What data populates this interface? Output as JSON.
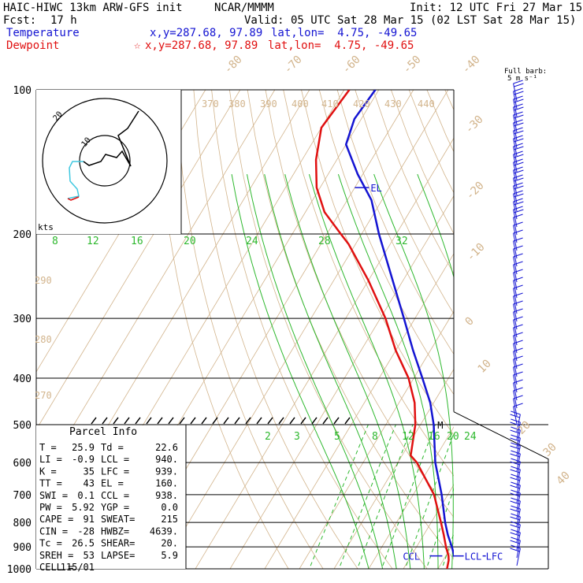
{
  "header": {
    "model": "HAIC-HIWC 13km ARW-GFS init",
    "org": "NCAR/MMMM",
    "init": "Init: 12 UTC Fri 27 Mar 15",
    "fcst_label": "Fcst:",
    "fcst_value": "17 h",
    "valid": "Valid: 05 UTC Sat 28 Mar 15 (02 LST Sat 28 Mar 15)",
    "temp_label": "Temperature",
    "temp_xy": "x,y=287.68, 97.89",
    "temp_latlon": "lat,lon=  4.75, -49.65",
    "dew_label": "Dewpoint",
    "dew_marker": "☆",
    "dew_xy": "x,y=287.68, 97.89",
    "dew_latlon": "lat,lon=  4.75, -49.65"
  },
  "barb_header": [
    "Full barb:",
    "5 m s⁻¹"
  ],
  "hodo": {
    "unit": "kts",
    "ring_labels": [
      "10",
      "20"
    ]
  },
  "parcel": {
    "title": "Parcel Info",
    "rows": [
      [
        "T  =",
        "25.9",
        "Td =",
        "22.6"
      ],
      [
        "LI =",
        "-0.9",
        "LCL =",
        "940."
      ],
      [
        "K  =",
        "35",
        "LFC =",
        "939."
      ],
      [
        "TT =",
        "43",
        "EL =",
        "160."
      ],
      [
        "SWI =",
        "0.1",
        "CCL =",
        "938."
      ],
      [
        "PW =",
        "5.92",
        "YGP =",
        "0.0"
      ],
      [
        "CAPE =",
        "91",
        "SWEAT=",
        "215"
      ],
      [
        "CIN =",
        "-28",
        "HWBZ=",
        "4639."
      ],
      [
        "Tc =",
        "26.5",
        "SHEAR=",
        "20."
      ],
      [
        "SREH =",
        "53",
        "LAPSE=",
        "5.9"
      ],
      [
        "CELL =",
        "115/01",
        "",
        ""
      ]
    ]
  },
  "colors": {
    "temperature": "#1414d2",
    "dewpoint": "#e01010",
    "isotherm": "#d2b48c",
    "mixing_ratio": "#2eb82e",
    "moist_adiabat": "#2eb82e",
    "hodo_low": "#e01010",
    "hodo_mid": "#40c8e0",
    "hodo_high": "#000000"
  },
  "chart_data": {
    "type": "skew-t",
    "pressure_levels": [
      100,
      200,
      300,
      400,
      500,
      600,
      700,
      800,
      900,
      1000
    ],
    "isotherm_labels": [
      "-80",
      "-70",
      "-60",
      "-50",
      "-40",
      "-30",
      "-20",
      "-10",
      "0",
      "10",
      "20",
      "30",
      "40"
    ],
    "theta_labels": [
      "370",
      "380",
      "390",
      "400",
      "410",
      "420",
      "430",
      "440",
      "290",
      "280",
      "270"
    ],
    "mixing_ratio_labels": [
      "2",
      "3",
      "5",
      "8",
      "12",
      "16",
      "20",
      "24",
      "8",
      "12",
      "16",
      "20",
      "24",
      "28",
      "32"
    ],
    "temperature": {
      "pressure": [
        1000,
        970,
        950,
        900,
        850,
        800,
        700,
        600,
        500,
        450,
        400,
        350,
        300,
        250,
        200,
        170,
        150,
        130,
        115,
        100
      ],
      "value": [
        26.2,
        24.2,
        23.0,
        20.2,
        17.0,
        14.0,
        8.2,
        0.8,
        -6.2,
        -11.0,
        -17.5,
        -25.0,
        -33.2,
        -43.0,
        -55.0,
        -63.0,
        -71.5,
        -80.0,
        -82.0,
        -81.0
      ]
    },
    "dewpoint": {
      "pressure": [
        1000,
        960,
        940,
        900,
        850,
        800,
        700,
        600,
        580,
        500,
        450,
        400,
        350,
        300,
        250,
        210,
        200,
        180,
        160,
        140,
        120,
        100
      ],
      "value": [
        22.6,
        21.6,
        20.8,
        18.5,
        15.8,
        12.8,
        6.0,
        -4.5,
        -7.5,
        -11.5,
        -15.5,
        -21.5,
        -30.0,
        -38.5,
        -50.0,
        -62.0,
        -66.0,
        -74.5,
        -81.0,
        -86.0,
        -90.0,
        -88.5
      ]
    },
    "annotations": {
      "EL": "EL",
      "M": "M",
      "CCL": "CCL",
      "LCL": "LCL",
      "LFC": "LFC"
    }
  }
}
